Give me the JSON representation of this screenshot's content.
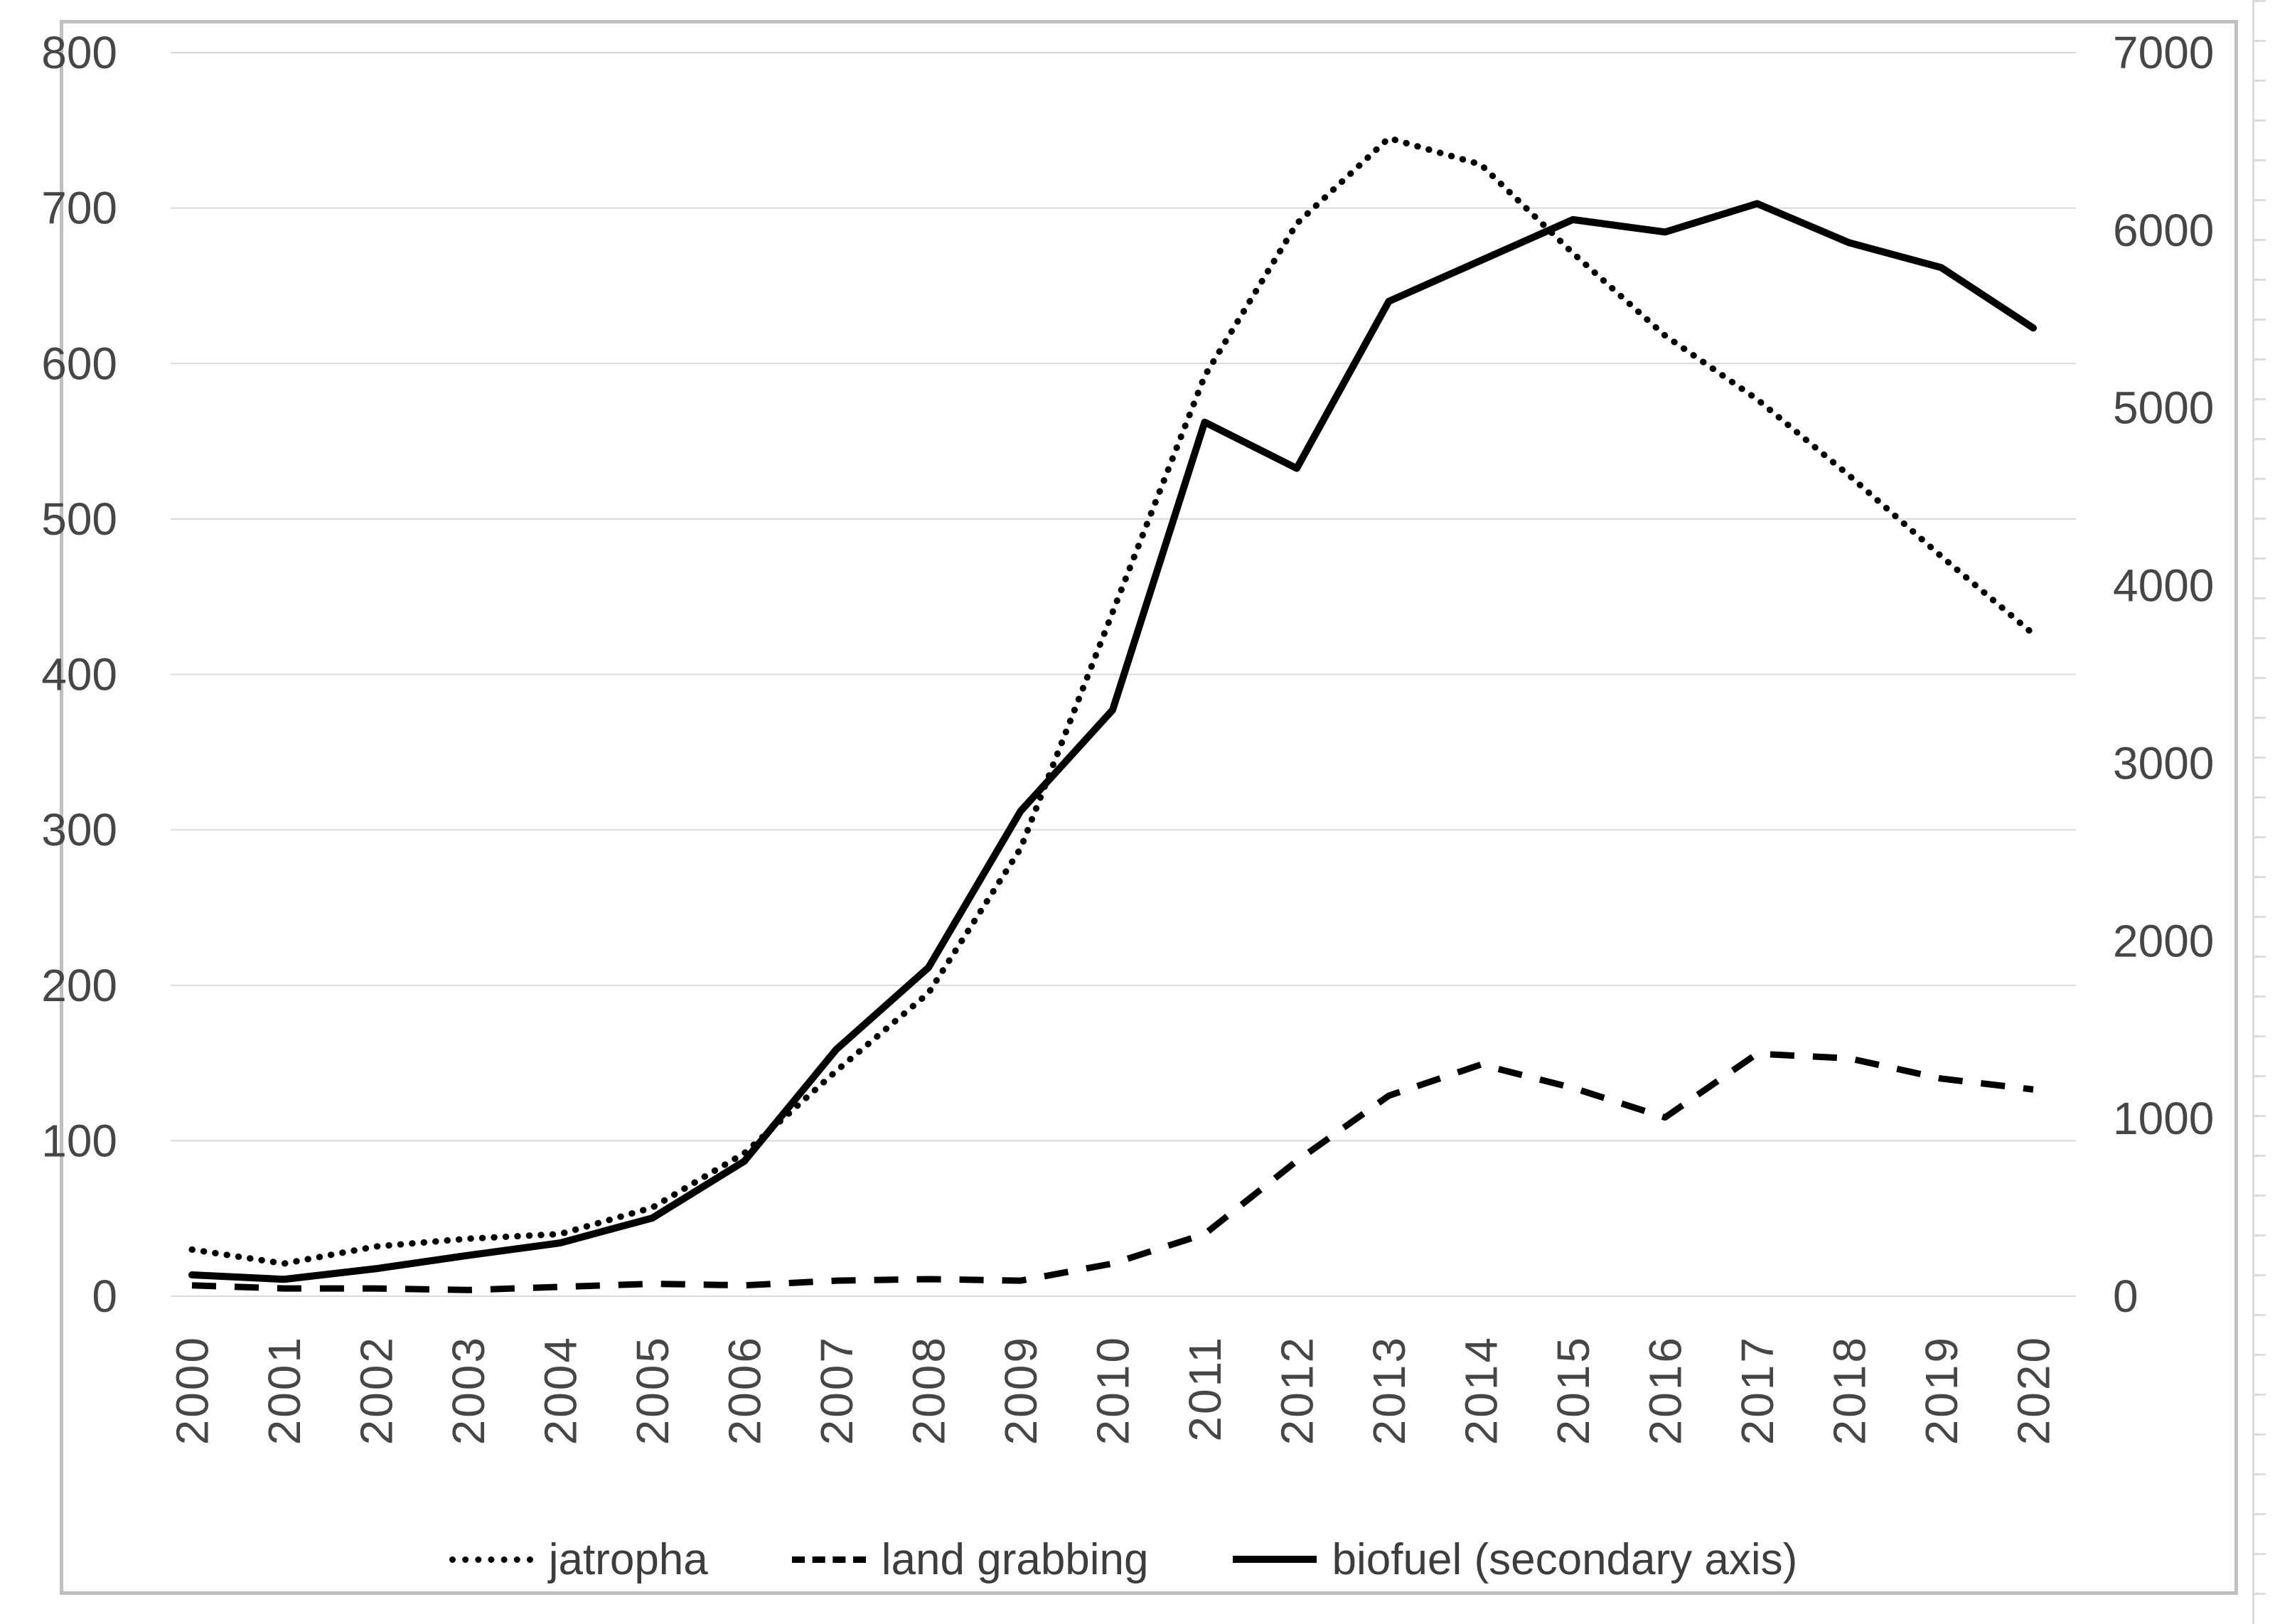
{
  "chart_data": {
    "type": "line",
    "title": "",
    "xlabel": "",
    "ylabel_left": "",
    "ylabel_right": "",
    "grid": "horizontal",
    "legend_position": "bottom",
    "x_categories": [
      "2000",
      "2001",
      "2002",
      "2003",
      "2004",
      "2005",
      "2006",
      "2007",
      "2008",
      "2009",
      "2010",
      "2011",
      "2012",
      "2013",
      "2014",
      "2015",
      "2016",
      "2017",
      "2018",
      "2019",
      "2020"
    ],
    "axes": {
      "left": {
        "min": 0,
        "max": 800,
        "tick_step": 100,
        "ticks": [
          800,
          700,
          600,
          500,
          400,
          300,
          200,
          100,
          0
        ]
      },
      "right": {
        "min": 0,
        "max": 7000,
        "tick_step": 1000,
        "ticks": [
          7000,
          6000,
          5000,
          4000,
          3000,
          2000,
          1000,
          0
        ]
      }
    },
    "series": [
      {
        "name": "jatropha",
        "legend_label": "jatropha",
        "axis": "left",
        "line_style": "dotted",
        "color": "#000000",
        "values": [
          30,
          21,
          32,
          37,
          40,
          57,
          92,
          145,
          195,
          288,
          440,
          592,
          690,
          745,
          728,
          671,
          618,
          577,
          528,
          476,
          426
        ]
      },
      {
        "name": "land-grabbing",
        "legend_label": "land grabbing",
        "axis": "left",
        "line_style": "dashed",
        "color": "#000000",
        "values": [
          7,
          5,
          5,
          4,
          6,
          8,
          7,
          10,
          11,
          10,
          21,
          40,
          87,
          129,
          149,
          134,
          115,
          156,
          153,
          140,
          133
        ]
      },
      {
        "name": "biofuel",
        "legend_label": "biofuel (secondary axis)",
        "axis": "right",
        "line_style": "solid",
        "color": "#000000",
        "values": [
          120,
          95,
          155,
          230,
          300,
          440,
          760,
          1390,
          1850,
          2730,
          3300,
          4920,
          4660,
          5600,
          5830,
          6060,
          5990,
          6150,
          5930,
          5790,
          5450
        ]
      }
    ],
    "colors": {
      "line": "#000000",
      "grid": "#d9d9d9",
      "text": "#464646",
      "frame": "#bfbfbf"
    }
  }
}
